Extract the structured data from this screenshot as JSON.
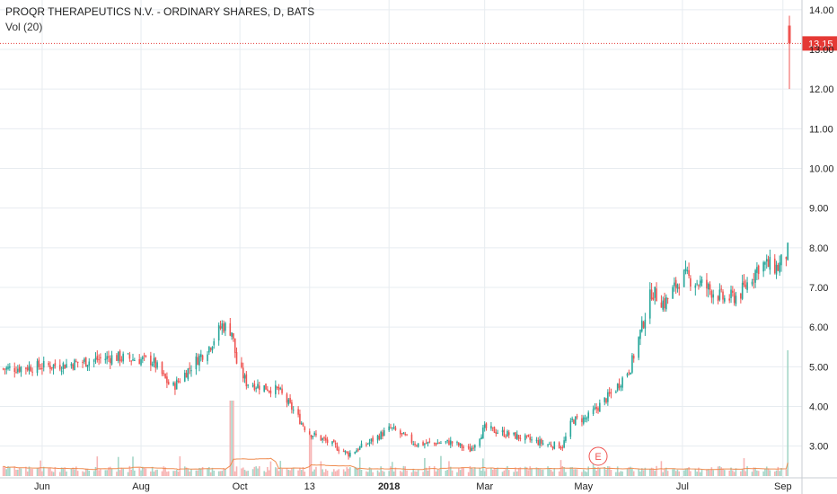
{
  "legend": {
    "title": "PROQR THERAPEUTICS N.V. - ORDINARY SHARES, D, BATS",
    "indicator": "Vol (20)"
  },
  "last_price_label": "13.15",
  "earnings_marker": "E",
  "colors": {
    "up": "#26a69a",
    "down": "#ef5350",
    "up_vol": "#a5d6c8",
    "down_vol": "#f7b4b4",
    "vol_ma": "#ef8c50",
    "grid": "#e7ecf0",
    "price_line": "#e53935"
  },
  "chart_data": {
    "type": "candlestick",
    "title": "PROQR THERAPEUTICS N.V. - ORDINARY SHARES, D, BATS",
    "xlabel": "",
    "ylabel": "",
    "ylim": [
      2.2,
      14.2
    ],
    "y_ticks": [
      "14.00",
      "13.00",
      "12.00",
      "11.00",
      "10.00",
      "9.00",
      "8.00",
      "7.00",
      "6.00",
      "5.00",
      "4.00",
      "3.00"
    ],
    "x_ticks": [
      {
        "label": "Jun",
        "date": "2017-06-01"
      },
      {
        "label": "Aug",
        "date": "2017-08-01"
      },
      {
        "label": "Oct",
        "date": "2017-10-01"
      },
      {
        "label": "13",
        "date": "2017-11-13"
      },
      {
        "label": "2018",
        "date": "2018-01-01",
        "bold": true
      },
      {
        "label": "Mar",
        "date": "2018-03-01"
      },
      {
        "label": "May",
        "date": "2018-05-01"
      },
      {
        "label": "Jul",
        "date": "2018-07-01"
      },
      {
        "label": "Sep",
        "date": "2018-09-01"
      }
    ],
    "x_range": [
      "2017-05-06",
      "2018-09-05"
    ],
    "grid": true,
    "last_price": 13.15,
    "price_path": [
      {
        "date": "2017-05-08",
        "close": 4.95
      },
      {
        "date": "2017-06-15",
        "close": 5.05
      },
      {
        "date": "2017-07-15",
        "close": 5.25
      },
      {
        "date": "2017-08-08",
        "close": 5.15
      },
      {
        "date": "2017-08-20",
        "close": 4.45
      },
      {
        "date": "2017-09-05",
        "close": 5.2
      },
      {
        "date": "2017-09-12",
        "close": 5.5
      },
      {
        "date": "2017-09-20",
        "close": 6.05
      },
      {
        "date": "2017-09-26",
        "close": 5.9
      },
      {
        "date": "2017-09-29",
        "close": 5.1
      },
      {
        "date": "2017-10-05",
        "close": 4.6
      },
      {
        "date": "2017-10-25",
        "close": 4.4
      },
      {
        "date": "2017-11-03",
        "close": 3.9
      },
      {
        "date": "2017-11-12",
        "close": 3.35
      },
      {
        "date": "2017-11-22",
        "close": 3.15
      },
      {
        "date": "2017-12-07",
        "close": 2.8
      },
      {
        "date": "2017-12-18",
        "close": 3.05
      },
      {
        "date": "2018-01-02",
        "close": 3.45
      },
      {
        "date": "2018-01-18",
        "close": 3.05
      },
      {
        "date": "2018-02-08",
        "close": 3.1
      },
      {
        "date": "2018-02-20",
        "close": 2.9
      },
      {
        "date": "2018-03-01",
        "close": 3.45
      },
      {
        "date": "2018-03-20",
        "close": 3.25
      },
      {
        "date": "2018-04-08",
        "close": 3.05
      },
      {
        "date": "2018-04-18",
        "close": 3.0
      },
      {
        "date": "2018-04-24",
        "close": 3.65
      },
      {
        "date": "2018-05-03",
        "close": 3.7
      },
      {
        "date": "2018-05-20",
        "close": 4.4
      },
      {
        "date": "2018-05-30",
        "close": 5.0
      },
      {
        "date": "2018-06-06",
        "close": 6.0
      },
      {
        "date": "2018-06-12",
        "close": 6.9
      },
      {
        "date": "2018-06-20",
        "close": 6.6
      },
      {
        "date": "2018-07-01",
        "close": 7.3
      },
      {
        "date": "2018-07-12",
        "close": 7.1
      },
      {
        "date": "2018-07-27",
        "close": 6.7
      },
      {
        "date": "2018-08-05",
        "close": 6.8
      },
      {
        "date": "2018-08-18",
        "close": 7.6
      },
      {
        "date": "2018-08-29",
        "close": 7.5
      },
      {
        "date": "2018-09-04",
        "close": 7.9
      }
    ],
    "final_candle": {
      "date": "2018-09-05",
      "open": 13.6,
      "high": 13.85,
      "low": 12.0,
      "close": 13.15
    },
    "volume_spikes": [
      {
        "date": "2017-09-26",
        "volume_level": 0.6
      },
      {
        "date": "2017-11-13",
        "volume_level": 0.33
      },
      {
        "date": "2018-09-05",
        "volume_level": 1.0
      }
    ],
    "earnings_date": "2018-05-10"
  }
}
